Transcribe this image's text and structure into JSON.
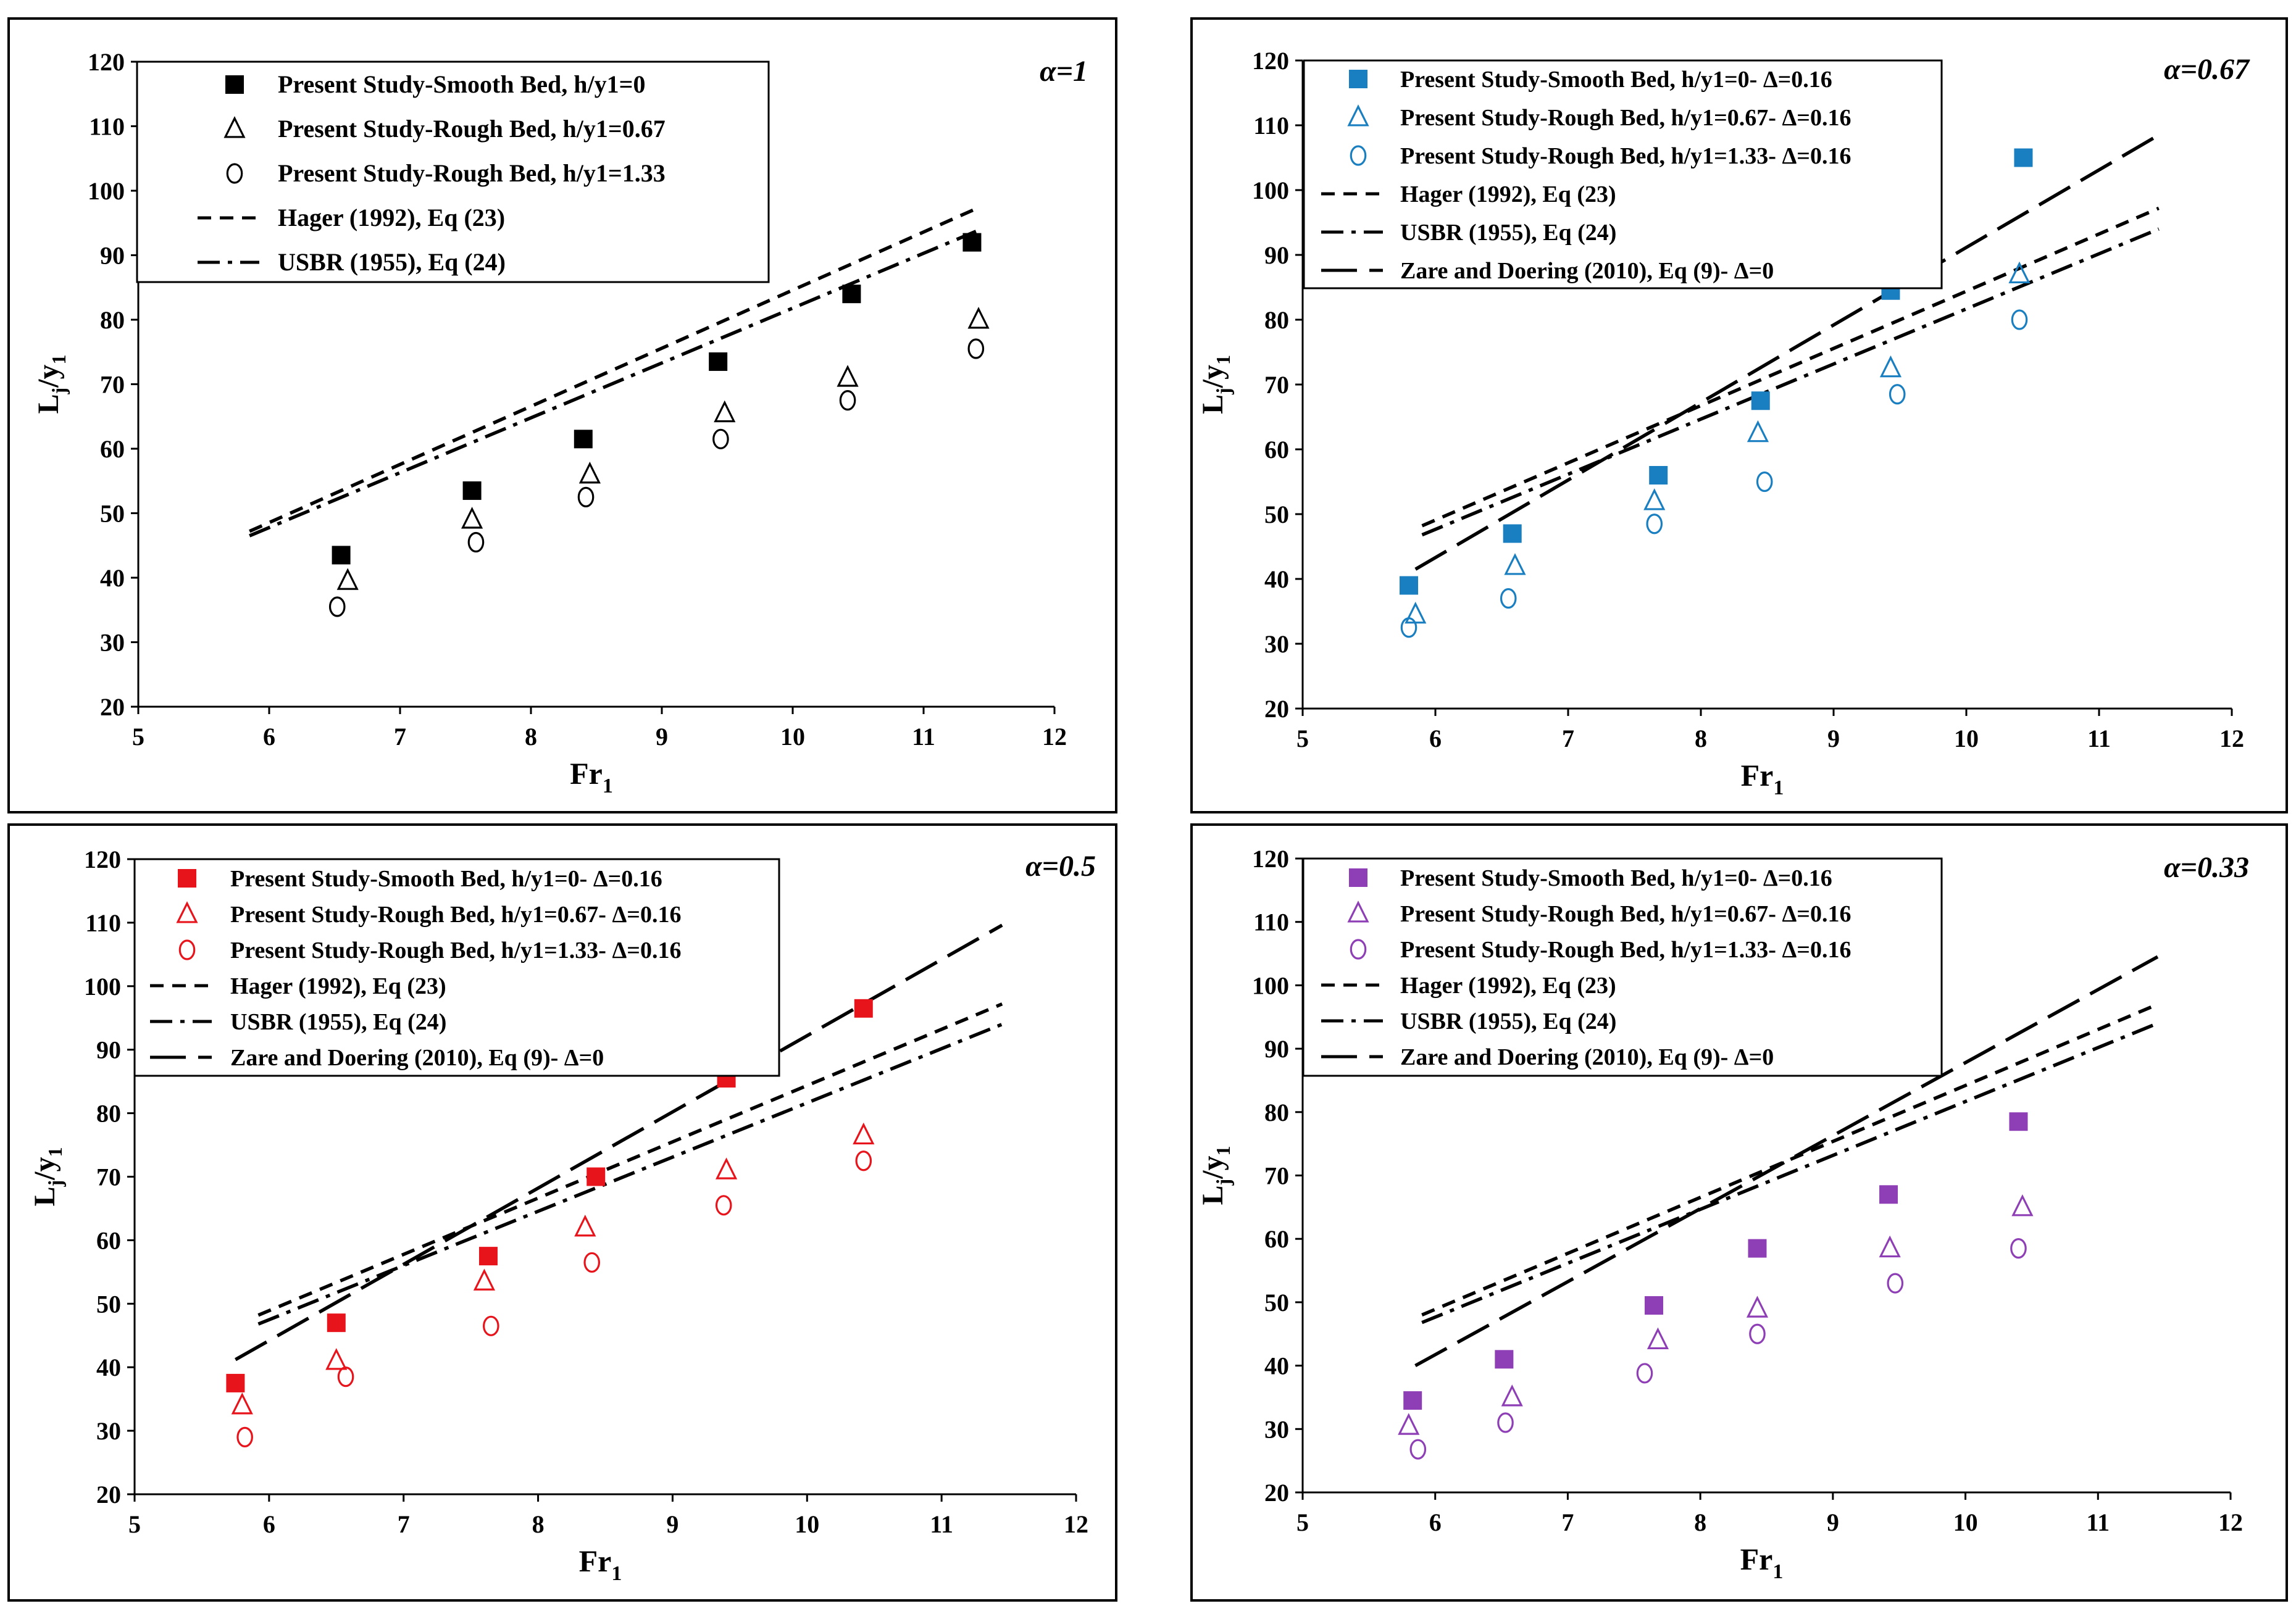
{
  "figure": {
    "panel_count": 4
  },
  "chart_data": [
    {
      "type": "scatter",
      "panel": "top-left",
      "alpha_label": "α=1",
      "color": "#000000",
      "xlabel_main": "Fr",
      "xlabel_sub": "1",
      "ylabel": "Lj/y1",
      "xlim": [
        5,
        12
      ],
      "ylim": [
        20,
        120
      ],
      "xticks": [
        5,
        6,
        7,
        8,
        9,
        10,
        11,
        12
      ],
      "yticks": [
        20,
        30,
        40,
        50,
        60,
        70,
        80,
        90,
        100,
        110,
        120
      ],
      "legend_position": "top-left",
      "series": [
        {
          "name": "Present Study-Smooth Bed, h/y1=0",
          "marker": "square-filled",
          "x": [
            6.55,
            7.55,
            8.4,
            9.43,
            10.45,
            11.37
          ],
          "y": [
            43.5,
            53.5,
            61.5,
            73.5,
            84,
            92
          ]
        },
        {
          "name": "Present Study-Rough Bed, h/y1=0.67",
          "marker": "triangle-open",
          "x": [
            6.6,
            7.55,
            8.45,
            9.48,
            10.42,
            11.42
          ],
          "y": [
            39.5,
            49,
            56,
            65.5,
            71,
            80
          ]
        },
        {
          "name": "Present Study-Rough Bed, h/y1=1.33",
          "marker": "circle-open",
          "x": [
            6.52,
            7.58,
            8.42,
            9.45,
            10.42,
            11.4
          ],
          "y": [
            35.5,
            45.5,
            52.5,
            61.5,
            67.5,
            75.5
          ]
        },
        {
          "name": "Hager (1992), Eq (23)",
          "line": "dashed",
          "x": [
            5.85,
            11.4
          ],
          "y": [
            47.2,
            97.2
          ]
        },
        {
          "name": "USBR (1955), Eq (24)",
          "line": "dashdot",
          "x": [
            5.85,
            11.4
          ],
          "y": [
            46.5,
            93.7
          ]
        }
      ]
    },
    {
      "type": "scatter",
      "panel": "top-right",
      "alpha_label": "α=0.67",
      "color": "#1a7fc1",
      "xlabel_main": "Fr",
      "xlabel_sub": "1",
      "ylabel": "Lj/y1",
      "xlim": [
        5,
        12
      ],
      "ylim": [
        20,
        120
      ],
      "xticks": [
        5,
        6,
        7,
        8,
        9,
        10,
        11,
        12
      ],
      "yticks": [
        20,
        30,
        40,
        50,
        60,
        70,
        80,
        90,
        100,
        110,
        120
      ],
      "legend_position": "top-left",
      "series": [
        {
          "name": "Present Study-Smooth Bed, h/y1=0- Δ=0.16",
          "marker": "square-filled",
          "x": [
            5.8,
            6.58,
            7.68,
            8.45,
            9.43,
            10.43
          ],
          "y": [
            39,
            47,
            56,
            67.5,
            84.5,
            105
          ]
        },
        {
          "name": "Present Study-Rough Bed, h/y1=0.67- Δ=0.16",
          "marker": "triangle-open",
          "x": [
            5.85,
            6.6,
            7.65,
            8.43,
            9.43,
            10.4
          ],
          "y": [
            34.5,
            42,
            52,
            62.5,
            72.5,
            87
          ]
        },
        {
          "name": "Present Study-Rough Bed, h/y1=1.33- Δ=0.16",
          "marker": "circle-open",
          "x": [
            5.8,
            6.55,
            7.65,
            8.48,
            9.48,
            10.4
          ],
          "y": [
            32.5,
            37,
            48.5,
            55,
            68.5,
            80
          ]
        },
        {
          "name": "Hager (1992), Eq (23)",
          "line": "dashed",
          "x": [
            5.9,
            11.45
          ],
          "y": [
            48.2,
            97.2
          ]
        },
        {
          "name": "USBR (1955), Eq (24)",
          "line": "dashdot",
          "x": [
            5.9,
            11.45
          ],
          "y": [
            46.8,
            94
          ]
        },
        {
          "name": "Zare and Doering (2010), Eq (9)- Δ=0",
          "line": "longdash",
          "x": [
            5.85,
            11.45
          ],
          "y": [
            41.5,
            108.5
          ]
        }
      ]
    },
    {
      "type": "scatter",
      "panel": "bottom-left",
      "alpha_label": "α=0.5",
      "color": "#e8141c",
      "xlabel_main": "Fr",
      "xlabel_sub": "1",
      "ylabel": "Lj/y1",
      "xlim": [
        5,
        12
      ],
      "ylim": [
        20,
        120
      ],
      "xticks": [
        5,
        6,
        7,
        8,
        9,
        10,
        11,
        12
      ],
      "yticks": [
        20,
        30,
        40,
        50,
        60,
        70,
        80,
        90,
        100,
        110,
        120
      ],
      "legend_position": "top-left",
      "series": [
        {
          "name": "Present Study-Smooth Bed, h/y1=0- Δ=0.16",
          "marker": "square-filled",
          "x": [
            5.75,
            6.5,
            7.63,
            8.43,
            9.4,
            10.42
          ],
          "y": [
            37.5,
            47,
            57.5,
            70,
            85.5,
            96.5
          ]
        },
        {
          "name": "Present Study-Rough Bed, h/y1=0.67- Δ=0.16",
          "marker": "triangle-open",
          "x": [
            5.8,
            6.5,
            7.6,
            8.35,
            9.4,
            10.42
          ],
          "y": [
            34,
            41,
            53.5,
            62,
            71,
            76.5
          ]
        },
        {
          "name": "Present Study-Rough Bed, h/y1=1.33- Δ=0.16",
          "marker": "circle-open",
          "x": [
            5.82,
            6.57,
            7.65,
            8.4,
            9.38,
            10.42
          ],
          "y": [
            29,
            38.5,
            46.5,
            56.5,
            65.5,
            72.5
          ]
        },
        {
          "name": "Hager (1992), Eq (23)",
          "line": "dashed",
          "x": [
            5.92,
            11.45
          ],
          "y": [
            48.2,
            97.2
          ]
        },
        {
          "name": "USBR (1955), Eq (24)",
          "line": "dashdot",
          "x": [
            5.92,
            11.45
          ],
          "y": [
            46.8,
            94
          ]
        },
        {
          "name": "Zare and Doering (2010), Eq (9)- Δ=0",
          "line": "longdash",
          "x": [
            5.75,
            11.45
          ],
          "y": [
            41.2,
            109.6
          ]
        }
      ]
    },
    {
      "type": "scatter",
      "panel": "bottom-right",
      "alpha_label": "α=0.33",
      "color": "#8e3fb5",
      "xlabel_main": "Fr",
      "xlabel_sub": "1",
      "ylabel": "Lj/y1",
      "xlim": [
        5,
        12
      ],
      "ylim": [
        20,
        120
      ],
      "xticks": [
        5,
        6,
        7,
        8,
        9,
        10,
        11,
        12
      ],
      "yticks": [
        20,
        30,
        40,
        50,
        60,
        70,
        80,
        90,
        100,
        110,
        120
      ],
      "legend_position": "top-left",
      "series": [
        {
          "name": "Present Study-Smooth Bed, h/y1=0- Δ=0.16",
          "marker": "square-filled",
          "x": [
            5.83,
            6.52,
            7.65,
            8.43,
            9.42,
            10.4
          ],
          "y": [
            34.5,
            41,
            49.5,
            58.5,
            67,
            78.5
          ]
        },
        {
          "name": "Present Study-Rough Bed, h/y1=0.67- Δ=0.16",
          "marker": "triangle-open",
          "x": [
            5.8,
            6.58,
            7.68,
            8.43,
            9.43,
            10.43
          ],
          "y": [
            30.5,
            35,
            44,
            49,
            58.5,
            65
          ]
        },
        {
          "name": "Present Study-Rough Bed, h/y1=1.33- Δ=0.16",
          "marker": "circle-open",
          "x": [
            5.87,
            6.53,
            7.58,
            8.43,
            9.47,
            10.4
          ],
          "y": [
            26.8,
            31,
            38.8,
            45,
            53,
            58.5
          ]
        },
        {
          "name": "Hager (1992), Eq (23)",
          "line": "dashed",
          "x": [
            5.9,
            11.45
          ],
          "y": [
            48,
            97
          ]
        },
        {
          "name": "USBR (1955), Eq (24)",
          "line": "dashdot",
          "x": [
            5.9,
            11.45
          ],
          "y": [
            46.8,
            94
          ]
        },
        {
          "name": "Zare and Doering (2010), Eq (9)- Δ=0",
          "line": "longdash",
          "x": [
            5.85,
            11.45
          ],
          "y": [
            40,
            104.5
          ]
        }
      ]
    }
  ]
}
